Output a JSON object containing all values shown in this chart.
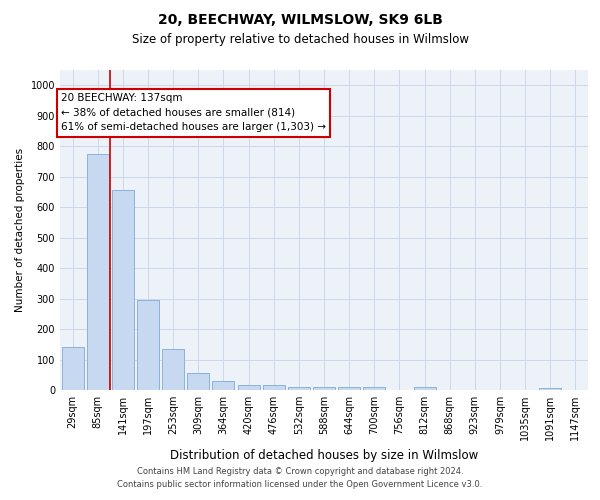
{
  "title1": "20, BEECHWAY, WILMSLOW, SK9 6LB",
  "title2": "Size of property relative to detached houses in Wilmslow",
  "xlabel": "Distribution of detached houses by size in Wilmslow",
  "ylabel": "Number of detached properties",
  "bar_labels": [
    "29sqm",
    "85sqm",
    "141sqm",
    "197sqm",
    "253sqm",
    "309sqm",
    "364sqm",
    "420sqm",
    "476sqm",
    "532sqm",
    "588sqm",
    "644sqm",
    "700sqm",
    "756sqm",
    "812sqm",
    "868sqm",
    "923sqm",
    "979sqm",
    "1035sqm",
    "1091sqm",
    "1147sqm"
  ],
  "bar_values": [
    140,
    775,
    655,
    295,
    135,
    55,
    28,
    18,
    18,
    10,
    10,
    10,
    10,
    0,
    10,
    0,
    0,
    0,
    0,
    8,
    0
  ],
  "bar_color": "#c6d9f1",
  "bar_edge_color": "#8ab2d8",
  "vline_x": 1.5,
  "vline_color": "#cc0000",
  "annotation_text": "20 BEECHWAY: 137sqm\n← 38% of detached houses are smaller (814)\n61% of semi-detached houses are larger (1,303) →",
  "annotation_box_color": "white",
  "annotation_box_edge_color": "#cc0000",
  "ylim": [
    0,
    1050
  ],
  "yticks": [
    0,
    100,
    200,
    300,
    400,
    500,
    600,
    700,
    800,
    900,
    1000
  ],
  "footnote1": "Contains HM Land Registry data © Crown copyright and database right 2024.",
  "footnote2": "Contains public sector information licensed under the Open Government Licence v3.0.",
  "grid_color": "#cdd8ea",
  "background_color": "#edf1f8",
  "title1_fontsize": 10,
  "title2_fontsize": 8.5,
  "ylabel_fontsize": 7.5,
  "xlabel_fontsize": 8.5,
  "tick_fontsize": 7,
  "annotation_fontsize": 7.5,
  "footnote_fontsize": 6
}
